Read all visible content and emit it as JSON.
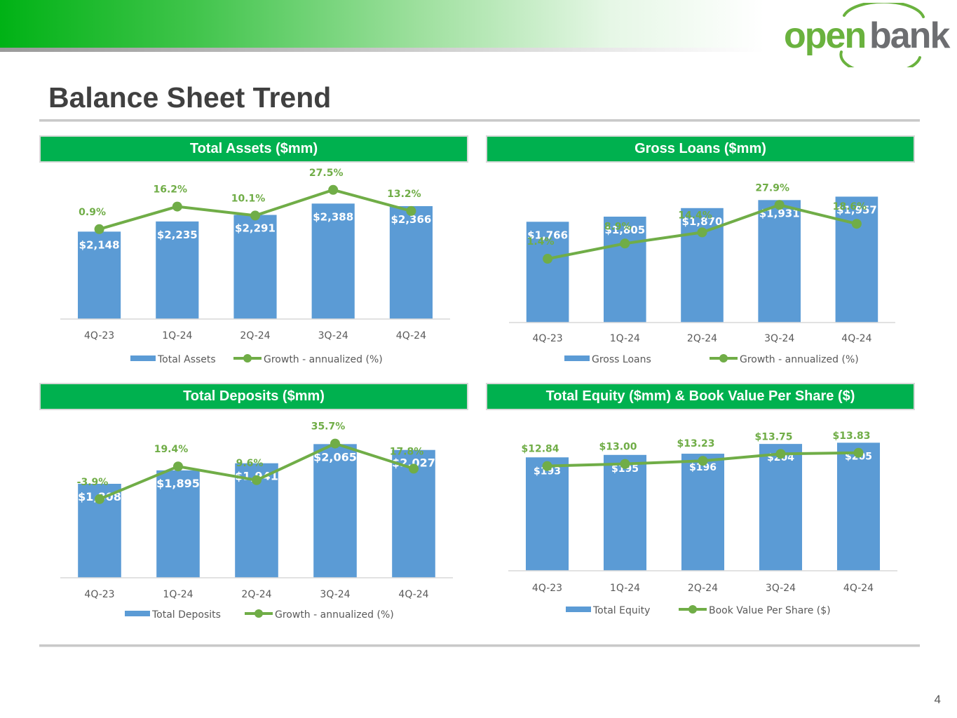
{
  "brand": {
    "logo_text_1": "open",
    "logo_text_2": "bank",
    "colors": {
      "logo_green": "#6ab23e",
      "logo_gray": "#6d6e71",
      "header_green": "#00b14f",
      "bar_blue": "#5b9bd5",
      "line_green": "#70ad47"
    }
  },
  "page": {
    "title": "Balance Sheet Trend",
    "number": "4"
  },
  "chart_data": [
    {
      "id": "assets",
      "type": "bar",
      "title": "Total Assets ($mm)",
      "categories": [
        "4Q-23",
        "1Q-24",
        "2Q-24",
        "3Q-24",
        "4Q-24"
      ],
      "series": [
        {
          "name": "Total Assets",
          "kind": "bar",
          "values": [
            2148,
            2235,
            2291,
            2388,
            2366
          ],
          "labels": [
            "$2,148",
            "$2,235",
            "$2,291",
            "$2,388",
            "$2,366"
          ]
        },
        {
          "name": "Growth - annualized (%)",
          "kind": "line",
          "values": [
            0.9,
            16.2,
            10.1,
            27.5,
            13.2
          ],
          "labels": [
            "0.9%",
            "16.2%",
            "10.1%",
            "27.5%",
            "13.2%"
          ]
        }
      ],
      "ylim_bar": [
        1400,
        2600
      ],
      "ylim_line": [
        -60,
        35
      ]
    },
    {
      "id": "loans",
      "type": "bar",
      "title": "Gross Loans ($mm)",
      "categories": [
        "4Q-23",
        "1Q-24",
        "2Q-24",
        "3Q-24",
        "4Q-24"
      ],
      "series": [
        {
          "name": "Gross Loans",
          "kind": "bar",
          "values": [
            1766,
            1805,
            1870,
            1931,
            1957
          ],
          "labels": [
            "$1,766",
            "$1,805",
            "$1,870",
            "$1,931",
            "$1,957"
          ]
        },
        {
          "name": "Growth - annualized (%)",
          "kind": "line",
          "values": [
            1.4,
            8.9,
            14.4,
            27.9,
            18.6
          ],
          "labels": [
            "1.4%",
            "8.9%",
            "14.4%",
            "27.9%",
            "18.6%"
          ]
        }
      ],
      "ylim_bar": [
        1000,
        2050
      ],
      "ylim_line": [
        -30,
        38
      ]
    },
    {
      "id": "deposits",
      "type": "bar",
      "title": "Total Deposits ($mm)",
      "categories": [
        "4Q-23",
        "1Q-24",
        "2Q-24",
        "3Q-24",
        "4Q-24"
      ],
      "series": [
        {
          "name": "Total Deposits",
          "kind": "bar",
          "values": [
            1808,
            1895,
            1941,
            2065,
            2027
          ],
          "labels": [
            "$1,808",
            "$1,895",
            "$1,941",
            "$2,065",
            "$2,027"
          ]
        },
        {
          "name": "Growth - annualized (%)",
          "kind": "line",
          "values": [
            -3.9,
            19.4,
            9.6,
            35.7,
            17.8
          ],
          "labels": [
            "-3.9%",
            "19.4%",
            "9.6%",
            "35.7%",
            "17.8%"
          ]
        }
      ],
      "ylim_bar": [
        1200,
        2180
      ],
      "ylim_line": [
        -60,
        48
      ]
    },
    {
      "id": "equity",
      "type": "bar",
      "title": "Total Equity ($mm) & Book Value Per Share ($)",
      "categories": [
        "4Q-23",
        "1Q-24",
        "2Q-24",
        "3Q-24",
        "4Q-24"
      ],
      "series": [
        {
          "name": "Total Equity",
          "kind": "bar",
          "values": [
            193,
            195,
            196,
            204,
            205
          ],
          "labels": [
            "$193",
            "$195",
            "$196",
            "$204",
            "$205"
          ]
        },
        {
          "name": "Book Value Per Share ($)",
          "kind": "line",
          "values": [
            12.84,
            13.0,
            13.23,
            13.75,
            13.83
          ],
          "labels": [
            "$12.84",
            "$13.00",
            "$13.23",
            "$13.75",
            "$13.83"
          ]
        }
      ],
      "ylim_bar": [
        100,
        215
      ],
      "ylim_line": [
        5,
        15.5
      ]
    }
  ]
}
